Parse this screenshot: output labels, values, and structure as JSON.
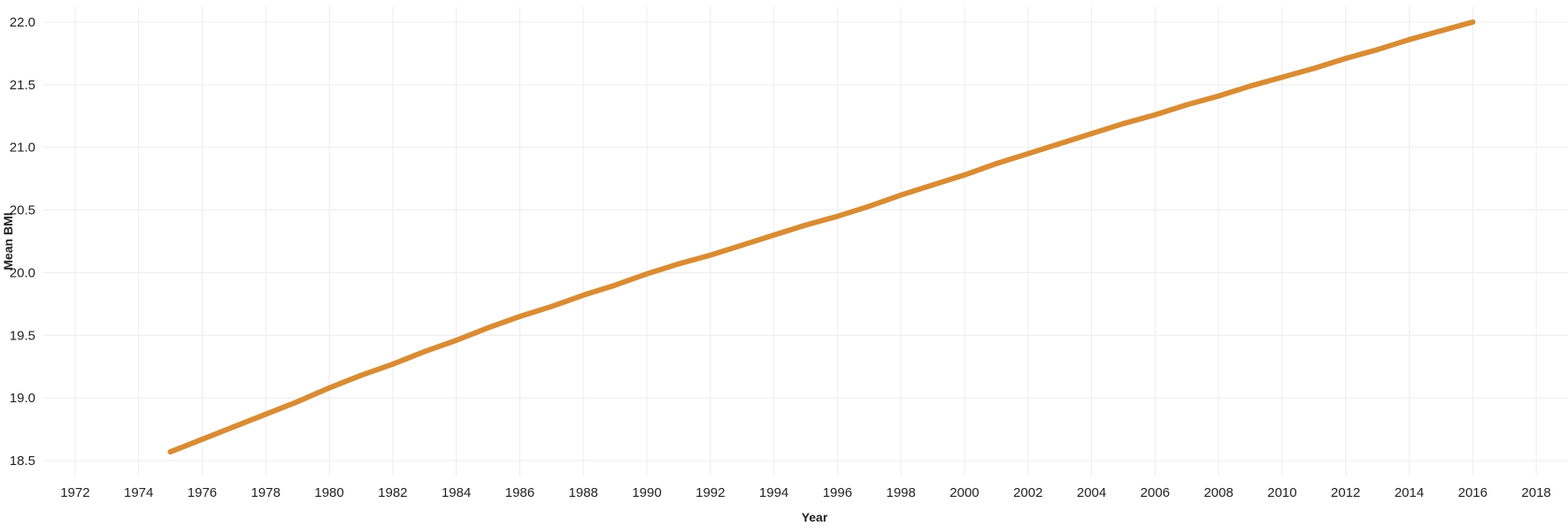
{
  "chart_data": {
    "type": "line",
    "title": "",
    "xlabel": "Year",
    "ylabel": "Mean BMI",
    "xlim": [
      1971,
      2019
    ],
    "ylim": [
      18.38,
      22.12
    ],
    "x_ticks": [
      "1972",
      "1974",
      "1976",
      "1978",
      "1980",
      "1982",
      "1984",
      "1986",
      "1988",
      "1990",
      "1992",
      "1994",
      "1996",
      "1998",
      "2000",
      "2002",
      "2004",
      "2006",
      "2008",
      "2010",
      "2012",
      "2014",
      "2016",
      "2018"
    ],
    "y_ticks": [
      "18.5",
      "19.0",
      "19.5",
      "20.0",
      "20.5",
      "21.0",
      "21.5",
      "22.0"
    ],
    "grid": true,
    "legend": "none",
    "colors": {
      "line": "#D98C33",
      "grid": "#ECECEC",
      "text": "#222222"
    },
    "series": [
      {
        "x": [
          1975,
          1976,
          1977,
          1978,
          1979,
          1980,
          1981,
          1982,
          1983,
          1984,
          1985,
          1986,
          1987,
          1988,
          1989,
          1990,
          1991,
          1992,
          1993,
          1994,
          1995,
          1996,
          1997,
          1998,
          1999,
          2000,
          2001,
          2002,
          2003,
          2004,
          2005,
          2006,
          2007,
          2008,
          2009,
          2010,
          2011,
          2012,
          2013,
          2014,
          2015,
          2016
        ],
        "values": [
          18.57,
          18.67,
          18.77,
          18.87,
          18.97,
          19.08,
          19.18,
          19.27,
          19.37,
          19.46,
          19.56,
          19.65,
          19.73,
          19.82,
          19.9,
          19.99,
          20.07,
          20.14,
          20.22,
          20.3,
          20.38,
          20.45,
          20.53,
          20.62,
          20.7,
          20.78,
          20.87,
          20.95,
          21.03,
          21.11,
          21.19,
          21.26,
          21.34,
          21.41,
          21.49,
          21.56,
          21.63,
          21.71,
          21.78,
          21.86,
          21.93,
          22.0
        ]
      }
    ]
  }
}
